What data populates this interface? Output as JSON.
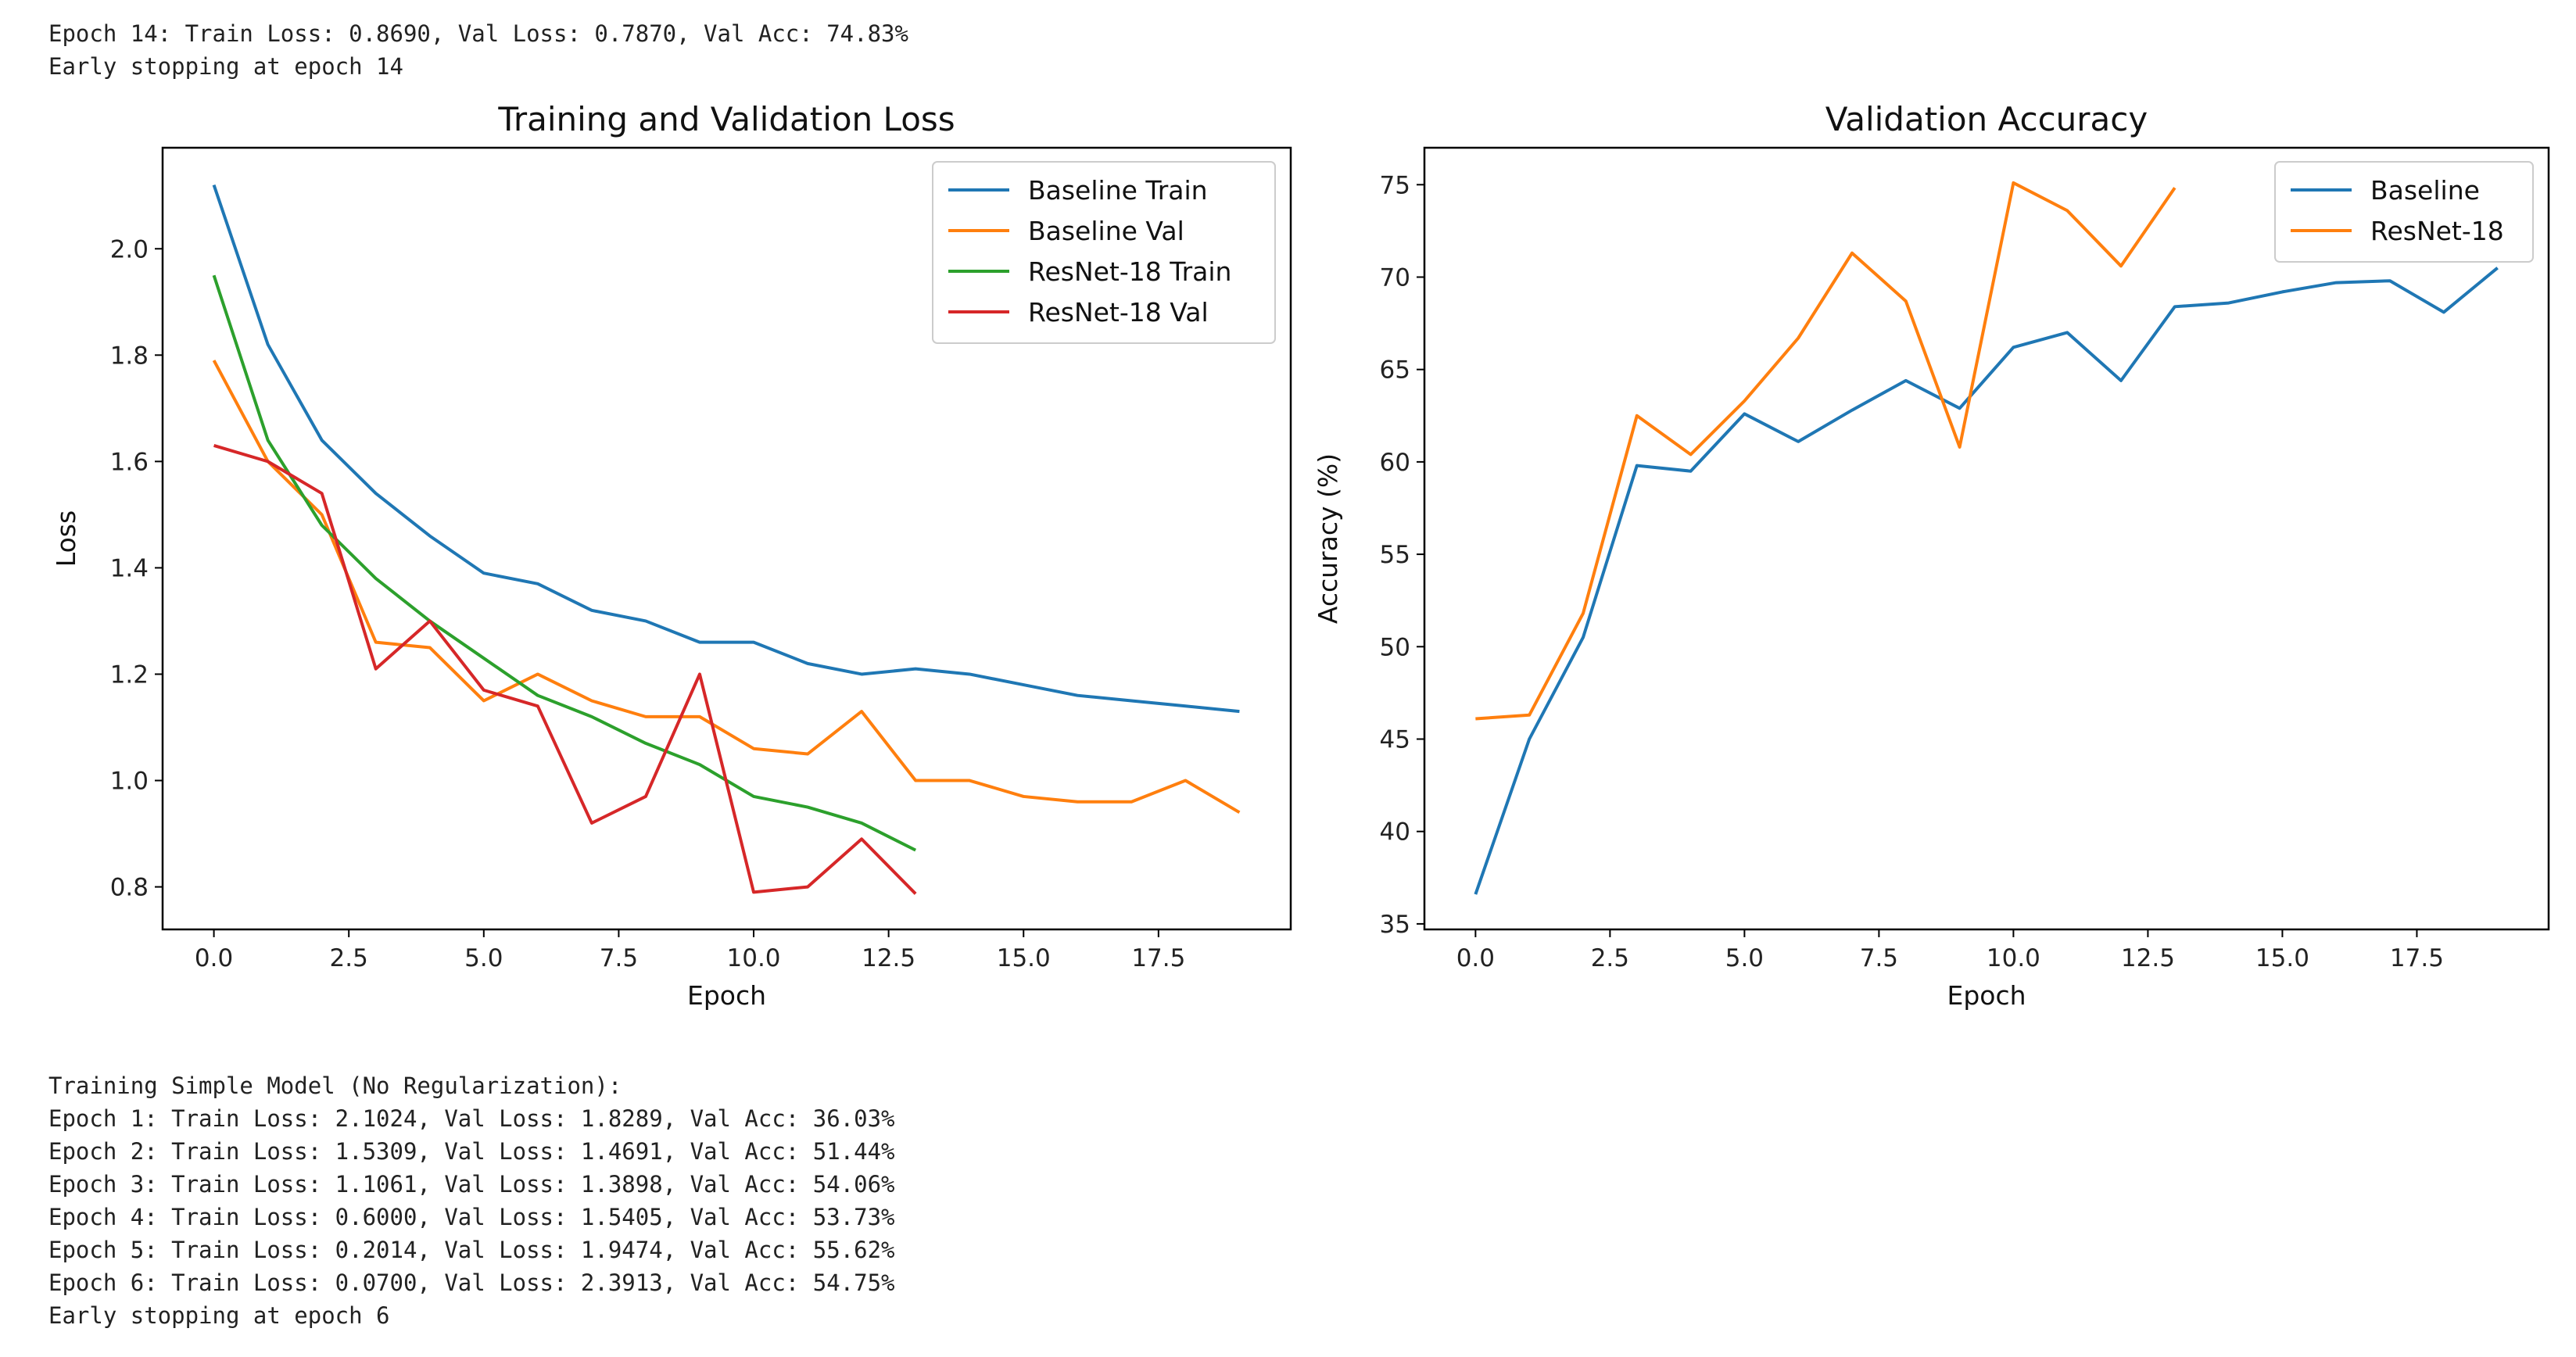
{
  "top_log": [
    "Epoch 14: Train Loss: 0.8690, Val Loss: 0.7870, Val Acc: 74.83%",
    "Early stopping at epoch 14"
  ],
  "bottom_log": [
    "Training Simple Model (No Regularization):",
    "Epoch 1: Train Loss: 2.1024, Val Loss: 1.8289, Val Acc: 36.03%",
    "Epoch 2: Train Loss: 1.5309, Val Loss: 1.4691, Val Acc: 51.44%",
    "Epoch 3: Train Loss: 1.1061, Val Loss: 1.3898, Val Acc: 54.06%",
    "Epoch 4: Train Loss: 0.6000, Val Loss: 1.5405, Val Acc: 53.73%",
    "Epoch 5: Train Loss: 0.2014, Val Loss: 1.9474, Val Acc: 55.62%",
    "Epoch 6: Train Loss: 0.0700, Val Loss: 2.3913, Val Acc: 54.75%",
    "Early stopping at epoch 6"
  ],
  "chart_data": [
    {
      "type": "line",
      "title": "Training and Validation Loss",
      "xlabel": "Epoch",
      "ylabel": "Loss",
      "xlim": [
        -0.95,
        19.95
      ],
      "ylim": [
        0.72,
        2.19
      ],
      "xticks": [
        0,
        2.5,
        5,
        7.5,
        10,
        12.5,
        15,
        17.5
      ],
      "xtick_labels": [
        "0.0",
        "2.5",
        "5.0",
        "7.5",
        "10.0",
        "12.5",
        "15.0",
        "17.5"
      ],
      "yticks": [
        0.8,
        1.0,
        1.2,
        1.4,
        1.6,
        1.8,
        2.0
      ],
      "ytick_labels": [
        "0.8",
        "1.0",
        "1.2",
        "1.4",
        "1.6",
        "1.8",
        "2.0"
      ],
      "grid": false,
      "legend": "top-right",
      "series": [
        {
          "name": "Baseline Train",
          "color": "#1f77b4",
          "values": [
            2.12,
            1.82,
            1.64,
            1.54,
            1.46,
            1.39,
            1.37,
            1.32,
            1.3,
            1.26,
            1.26,
            1.22,
            1.2,
            1.21,
            1.2,
            1.18,
            1.16,
            1.15,
            1.14,
            1.13
          ]
        },
        {
          "name": "Baseline Val",
          "color": "#ff7f0e",
          "values": [
            1.79,
            1.6,
            1.5,
            1.26,
            1.25,
            1.15,
            1.2,
            1.15,
            1.12,
            1.12,
            1.06,
            1.05,
            1.13,
            1.0,
            1.0,
            0.97,
            0.96,
            0.96,
            1.0,
            0.94
          ]
        },
        {
          "name": "ResNet-18 Train",
          "color": "#2ca02c",
          "values": [
            1.95,
            1.64,
            1.48,
            1.38,
            1.3,
            1.23,
            1.16,
            1.12,
            1.07,
            1.03,
            0.97,
            0.95,
            0.92,
            0.869
          ]
        },
        {
          "name": "ResNet-18 Val",
          "color": "#d62728",
          "values": [
            1.63,
            1.6,
            1.54,
            1.21,
            1.3,
            1.17,
            1.14,
            0.92,
            0.97,
            1.2,
            0.79,
            0.8,
            0.89,
            0.787
          ]
        }
      ]
    },
    {
      "type": "line",
      "title": "Validation Accuracy",
      "xlabel": "Epoch",
      "ylabel": "Accuracy (%)",
      "xlim": [
        -0.95,
        19.95
      ],
      "ylim": [
        34.7,
        77.0
      ],
      "xticks": [
        0,
        2.5,
        5,
        7.5,
        10,
        12.5,
        15,
        17.5
      ],
      "xtick_labels": [
        "0.0",
        "2.5",
        "5.0",
        "7.5",
        "10.0",
        "12.5",
        "15.0",
        "17.5"
      ],
      "yticks": [
        35,
        40,
        45,
        50,
        55,
        60,
        65,
        70,
        75
      ],
      "ytick_labels": [
        "35",
        "40",
        "45",
        "50",
        "55",
        "60",
        "65",
        "70",
        "75"
      ],
      "grid": false,
      "legend": "top-right",
      "series": [
        {
          "name": "Baseline",
          "color": "#1f77b4",
          "values": [
            36.6,
            45.0,
            50.5,
            59.8,
            59.5,
            62.6,
            61.1,
            62.8,
            64.4,
            62.9,
            66.2,
            67.0,
            64.4,
            68.4,
            68.6,
            69.2,
            69.7,
            69.8,
            68.1,
            70.5
          ]
        },
        {
          "name": "ResNet-18",
          "color": "#ff7f0e",
          "values": [
            46.1,
            46.3,
            51.8,
            62.5,
            60.4,
            63.3,
            66.7,
            71.3,
            68.7,
            60.8,
            75.1,
            73.6,
            70.6,
            74.83
          ]
        }
      ]
    }
  ]
}
